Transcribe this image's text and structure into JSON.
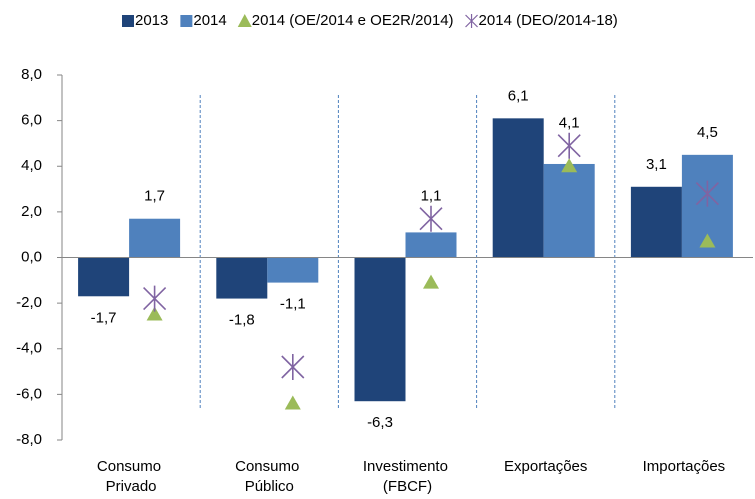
{
  "chart_data": {
    "type": "bar",
    "categories": [
      "Consumo Privado",
      "Consumo Público",
      "Investimento (FBCF)",
      "Exportações",
      "Importações"
    ],
    "series": [
      {
        "name": "2013",
        "color": "#1f4479",
        "values": [
          -1.7,
          -1.8,
          -6.3,
          6.1,
          3.1
        ],
        "value_labels": [
          "-1,7",
          "-1,8",
          "-6,3",
          "6,1",
          "3,1"
        ]
      },
      {
        "name": "2014",
        "color": "#4f81bd",
        "values": [
          1.7,
          -1.1,
          1.1,
          4.1,
          4.5
        ],
        "value_labels": [
          "1,7",
          "-1,1",
          "1,1",
          "4,1",
          "4,5"
        ]
      },
      {
        "name": "2014 (OE/2014 e OE2R/2014)",
        "color": "#9bbb59",
        "marker": "triangle",
        "values": [
          -2.5,
          -6.4,
          -1.1,
          4.0,
          0.7
        ]
      },
      {
        "name": "2014 (DEO/2014-18)",
        "color": "#8064a2",
        "marker": "asterisk",
        "values": [
          -1.8,
          -4.8,
          1.7,
          4.9,
          2.8
        ]
      }
    ],
    "ylim": [
      -8,
      8
    ],
    "yticks": [
      {
        "value": -8,
        "label": "-8,0"
      },
      {
        "value": -6,
        "label": "-6,0"
      },
      {
        "value": -4,
        "label": "-4,0"
      },
      {
        "value": -2,
        "label": "-2,0"
      },
      {
        "value": 0,
        "label": "0,0"
      },
      {
        "value": 2,
        "label": "2,0"
      },
      {
        "value": 4,
        "label": "4,0"
      },
      {
        "value": 6,
        "label": "6,0"
      },
      {
        "value": 8,
        "label": "8,0"
      }
    ],
    "legend": "top"
  }
}
